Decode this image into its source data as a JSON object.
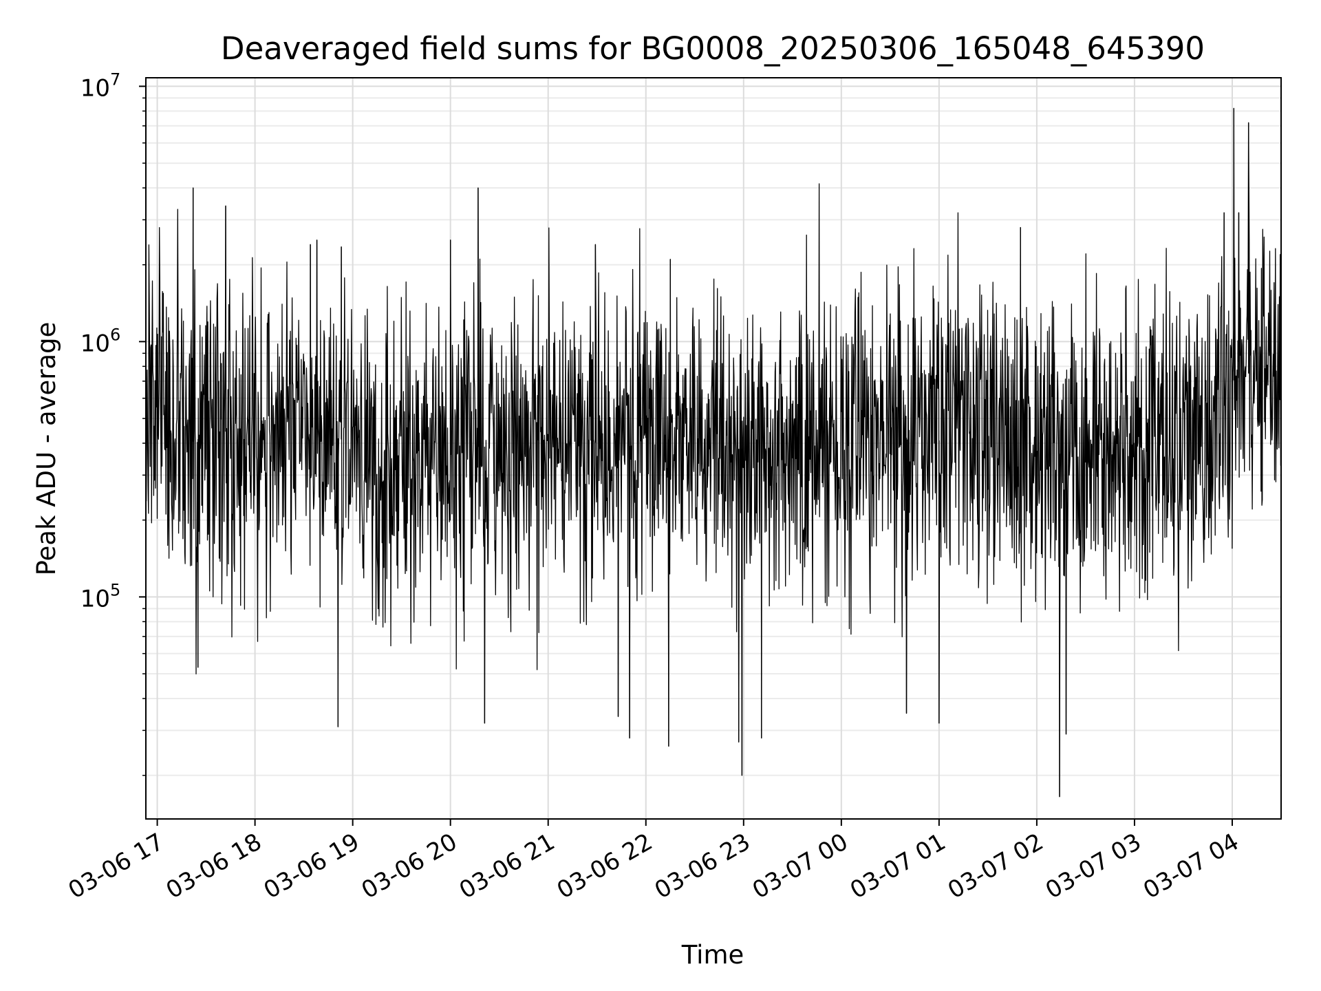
{
  "chart_data": {
    "type": "line",
    "title": "Deaveraged field sums for BG0008_20250306_165048_645390",
    "xlabel": "Time",
    "ylabel": "Peak ADU - average",
    "yscale": "log",
    "ylim": [
      13500,
      10800000
    ],
    "xlim": [
      "2025-03-06 16:53",
      "2025-03-07 04:30"
    ],
    "grid": true,
    "x_ticks": [
      {
        "value": "2025-03-06 17:00",
        "label": "03-06 17"
      },
      {
        "value": "2025-03-06 18:00",
        "label": "03-06 18"
      },
      {
        "value": "2025-03-06 19:00",
        "label": "03-06 19"
      },
      {
        "value": "2025-03-06 20:00",
        "label": "03-06 20"
      },
      {
        "value": "2025-03-06 21:00",
        "label": "03-06 21"
      },
      {
        "value": "2025-03-06 22:00",
        "label": "03-06 22"
      },
      {
        "value": "2025-03-06 23:00",
        "label": "03-06 23"
      },
      {
        "value": "2025-03-07 00:00",
        "label": "03-07 00"
      },
      {
        "value": "2025-03-07 01:00",
        "label": "03-07 01"
      },
      {
        "value": "2025-03-07 02:00",
        "label": "03-07 02"
      },
      {
        "value": "2025-03-07 03:00",
        "label": "03-07 03"
      },
      {
        "value": "2025-03-07 04:00",
        "label": "03-07 04"
      }
    ],
    "y_ticks": [
      {
        "value": 100000,
        "base": "10",
        "exp": "5"
      },
      {
        "value": 1000000,
        "base": "10",
        "exp": "6"
      },
      {
        "value": 10000000,
        "base": "10",
        "exp": "7"
      }
    ],
    "series": [
      {
        "color": "#000000",
        "x": [
          "2025-03-06 16:53",
          "2025-03-06 17:00",
          "2025-03-06 17:05",
          "2025-03-06 17:12",
          "2025-03-06 17:20",
          "2025-03-06 17:30",
          "2025-03-06 17:40",
          "2025-03-06 17:50",
          "2025-03-06 18:00",
          "2025-03-06 18:10",
          "2025-03-06 18:20",
          "2025-03-06 18:30",
          "2025-03-06 18:40",
          "2025-03-06 18:50",
          "2025-03-06 19:00",
          "2025-03-06 19:10",
          "2025-03-06 19:20",
          "2025-03-06 19:30",
          "2025-03-06 19:40",
          "2025-03-06 19:50",
          "2025-03-06 20:00",
          "2025-03-06 20:10",
          "2025-03-06 20:20",
          "2025-03-06 20:30",
          "2025-03-06 20:40",
          "2025-03-06 20:50",
          "2025-03-06 21:00",
          "2025-03-06 21:10",
          "2025-03-06 21:20",
          "2025-03-06 21:30",
          "2025-03-06 21:40",
          "2025-03-06 21:50",
          "2025-03-06 22:00",
          "2025-03-06 22:10",
          "2025-03-06 22:20",
          "2025-03-06 22:30",
          "2025-03-06 22:40",
          "2025-03-06 22:50",
          "2025-03-06 23:00",
          "2025-03-06 23:10",
          "2025-03-06 23:20",
          "2025-03-06 23:30",
          "2025-03-06 23:40",
          "2025-03-06 23:50",
          "2025-03-07 00:00",
          "2025-03-07 00:10",
          "2025-03-07 00:20",
          "2025-03-07 00:30",
          "2025-03-07 00:40",
          "2025-03-07 00:50",
          "2025-03-07 01:00",
          "2025-03-07 01:10",
          "2025-03-07 01:20",
          "2025-03-07 01:30",
          "2025-03-07 01:40",
          "2025-03-07 01:50",
          "2025-03-07 02:00",
          "2025-03-07 02:10",
          "2025-03-07 02:20",
          "2025-03-07 02:30",
          "2025-03-07 02:40",
          "2025-03-07 02:50",
          "2025-03-07 03:00",
          "2025-03-07 03:10",
          "2025-03-07 03:20",
          "2025-03-07 03:30",
          "2025-03-07 03:40",
          "2025-03-07 03:50",
          "2025-03-07 04:00",
          "2025-03-07 04:10",
          "2025-03-07 04:20",
          "2025-03-07 04:30"
        ],
        "y": [
          550000,
          600000,
          480000,
          420000,
          400000,
          430000,
          450000,
          420000,
          440000,
          480000,
          500000,
          470000,
          450000,
          420000,
          400000,
          360000,
          340000,
          330000,
          360000,
          380000,
          360000,
          380000,
          390000,
          370000,
          360000,
          380000,
          400000,
          410000,
          420000,
          400000,
          380000,
          390000,
          400000,
          410000,
          420000,
          400000,
          390000,
          380000,
          380000,
          370000,
          360000,
          380000,
          390000,
          400000,
          400000,
          410000,
          420000,
          430000,
          420000,
          400000,
          410000,
          430000,
          440000,
          420000,
          400000,
          380000,
          370000,
          360000,
          370000,
          380000,
          390000,
          380000,
          380000,
          390000,
          400000,
          410000,
          420000,
          450000,
          700000,
          750000,
          800000,
          820000
        ],
        "spikes_high": [
          {
            "x": "2025-03-06 17:22",
            "y": 4000000
          },
          {
            "x": "2025-03-06 17:42",
            "y": 3400000
          },
          {
            "x": "2025-03-06 18:34",
            "y": 2400000
          },
          {
            "x": "2025-03-06 18:38",
            "y": 2500000
          },
          {
            "x": "2025-03-06 18:53",
            "y": 2350000
          },
          {
            "x": "2025-03-06 20:00",
            "y": 2500000
          },
          {
            "x": "2025-03-06 20:17",
            "y": 4000000
          },
          {
            "x": "2025-03-06 21:29",
            "y": 2400000
          },
          {
            "x": "2025-03-06 22:15",
            "y": 2100000
          },
          {
            "x": "2025-03-07 01:50",
            "y": 2800000
          },
          {
            "x": "2025-03-07 03:55",
            "y": 3200000
          },
          {
            "x": "2025-03-07 04:01",
            "y": 8200000
          },
          {
            "x": "2025-03-07 04:04",
            "y": 3200000
          },
          {
            "x": "2025-03-07 04:10",
            "y": 7200000
          }
        ],
        "spikes_low": [
          {
            "x": "2025-03-06 17:25",
            "y": 53000
          },
          {
            "x": "2025-03-06 18:51",
            "y": 31000
          },
          {
            "x": "2025-03-06 20:21",
            "y": 32000
          },
          {
            "x": "2025-03-06 21:43",
            "y": 34000
          },
          {
            "x": "2025-03-06 21:50",
            "y": 28000
          },
          {
            "x": "2025-03-06 22:14",
            "y": 26000
          },
          {
            "x": "2025-03-06 22:57",
            "y": 27000
          },
          {
            "x": "2025-03-06 22:59",
            "y": 20000
          },
          {
            "x": "2025-03-06 23:11",
            "y": 28000
          },
          {
            "x": "2025-03-07 00:40",
            "y": 35000
          },
          {
            "x": "2025-03-07 01:00",
            "y": 32000
          },
          {
            "x": "2025-03-07 02:14",
            "y": 16500
          },
          {
            "x": "2025-03-07 02:18",
            "y": 29000
          }
        ]
      }
    ]
  }
}
